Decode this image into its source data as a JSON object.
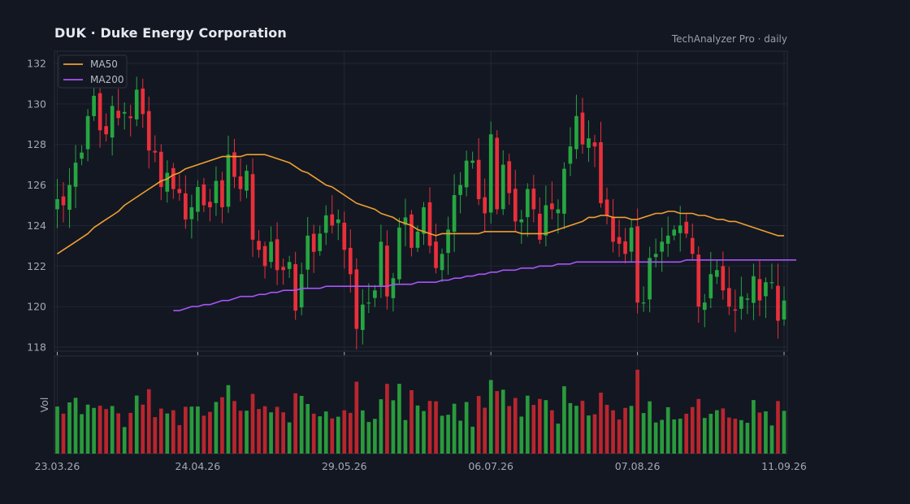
{
  "header": {
    "title": "DUK  ·  Duke Energy Corporation",
    "subtitle": "TechAnalyzer Pro · daily"
  },
  "legend": [
    {
      "label": "MA50",
      "color": "#f0a030"
    },
    {
      "label": "MA200",
      "color": "#a855f7"
    }
  ],
  "colors": {
    "up": "#26a641",
    "down": "#e8303a",
    "volume_up": "#2a9a3c",
    "volume_down": "#b8262e"
  },
  "chart_data": {
    "type": "candlestick",
    "ylim": [
      117.8,
      132.6
    ],
    "yticks": [
      118,
      120,
      122,
      124,
      126,
      128,
      130,
      132
    ],
    "volume_label": "Vol",
    "date_labels": [
      {
        "index": 0,
        "label": "23.03.26"
      },
      {
        "index": 23,
        "label": "24.04.26"
      },
      {
        "index": 47,
        "label": "29.05.26"
      },
      {
        "index": 71,
        "label": "06.07.26"
      },
      {
        "index": 95,
        "label": "07.08.26"
      },
      {
        "index": 119,
        "label": "11.09.26"
      }
    ],
    "close": [
      125.3,
      125.0,
      126.0,
      127.1,
      127.6,
      129.4,
      130.4,
      128.7,
      128.5,
      129.9,
      129.3,
      129.6,
      129.3,
      130.7,
      129.5,
      127.7,
      127.6,
      125.9,
      126.6,
      125.8,
      125.6,
      124.3,
      124.9,
      125.9,
      125.0,
      124.9,
      126.2,
      124.9,
      127.5,
      126.4,
      125.8,
      126.7,
      123.3,
      122.8,
      122.0,
      123.2,
      121.8,
      121.8,
      122.2,
      119.8,
      121.6,
      123.5,
      122.7,
      123.6,
      124.5,
      124.0,
      124.3,
      122.8,
      121.6,
      118.9,
      120.1,
      120.2,
      120.8,
      123.2,
      120.5,
      121.4,
      123.9,
      124.4,
      122.9,
      123.7,
      124.9,
      123.0,
      121.9,
      122.6,
      123.8,
      125.5,
      126.0,
      127.2,
      127.2,
      125.3,
      124.6,
      128.5,
      124.8,
      127.0,
      125.6,
      124.2,
      124.3,
      125.8,
      124.8,
      123.3,
      125.0,
      124.8,
      124.8,
      126.8,
      127.9,
      129.4,
      128.0,
      128.3,
      127.9,
      125.1,
      124.5,
      123.2,
      123.1,
      122.6,
      123.9,
      120.2,
      120.2,
      122.4,
      122.6,
      123.2,
      123.5,
      123.8,
      124.0,
      123.6,
      122.6,
      120.0,
      120.2,
      121.6,
      121.8,
      120.8,
      120.0,
      119.8,
      120.5,
      120.4,
      121.5,
      120.3,
      121.2,
      121.2,
      119.3,
      120.3
    ],
    "ma50_start": 0,
    "ma50": [
      122.6,
      122.8,
      123.0,
      123.2,
      123.4,
      123.6,
      123.9,
      124.1,
      124.3,
      124.5,
      124.7,
      125.0,
      125.2,
      125.4,
      125.6,
      125.8,
      126.0,
      126.2,
      126.3,
      126.5,
      126.6,
      126.8,
      126.9,
      127.0,
      127.1,
      127.2,
      127.3,
      127.4,
      127.4,
      127.4,
      127.4,
      127.5,
      127.5,
      127.5,
      127.5,
      127.4,
      127.3,
      127.2,
      127.1,
      126.9,
      126.7,
      126.6,
      126.4,
      126.2,
      126.0,
      125.9,
      125.7,
      125.5,
      125.3,
      125.1,
      125.0,
      124.9,
      124.8,
      124.6,
      124.5,
      124.4,
      124.2,
      124.1,
      124.0,
      123.8,
      123.7,
      123.6,
      123.5,
      123.6,
      123.6,
      123.6,
      123.6,
      123.6,
      123.6,
      123.6,
      123.7,
      123.7,
      123.7,
      123.7,
      123.7,
      123.7,
      123.6,
      123.6,
      123.6,
      123.6,
      123.6,
      123.7,
      123.8,
      123.9,
      124.0,
      124.1,
      124.2,
      124.4,
      124.4,
      124.5,
      124.5,
      124.4,
      124.4,
      124.4,
      124.3,
      124.3,
      124.4,
      124.5,
      124.6,
      124.6,
      124.7,
      124.7,
      124.6,
      124.6,
      124.6,
      124.5,
      124.5,
      124.4,
      124.3,
      124.3,
      124.2,
      124.2,
      124.1,
      124.0,
      123.9,
      123.8,
      123.7,
      123.6,
      123.5,
      123.5
    ],
    "ma200_start": 19,
    "ma200": [
      119.8,
      119.8,
      119.9,
      120.0,
      120.0,
      120.1,
      120.1,
      120.2,
      120.3,
      120.3,
      120.4,
      120.5,
      120.5,
      120.5,
      120.6,
      120.6,
      120.7,
      120.7,
      120.8,
      120.8,
      120.8,
      120.9,
      120.9,
      120.9,
      120.9,
      121.0,
      121.0,
      121.0,
      121.0,
      121.0,
      121.0,
      121.0,
      121.0,
      121.0,
      121.0,
      121.0,
      121.1,
      121.1,
      121.1,
      121.1,
      121.2,
      121.2,
      121.2,
      121.2,
      121.3,
      121.3,
      121.4,
      121.4,
      121.5,
      121.5,
      121.6,
      121.6,
      121.7,
      121.7,
      121.8,
      121.8,
      121.8,
      121.9,
      121.9,
      121.9,
      122.0,
      122.0,
      122.0,
      122.1,
      122.1,
      122.1,
      122.2,
      122.2,
      122.2,
      122.2,
      122.2,
      122.2,
      122.2,
      122.2,
      122.2,
      122.2,
      122.2,
      122.2,
      122.2,
      122.2,
      122.2,
      122.2,
      122.2,
      122.2,
      122.3,
      122.3,
      122.3,
      122.3,
      122.3,
      122.3,
      122.3,
      122.3,
      122.3,
      122.3,
      122.3,
      122.3,
      122.3,
      122.3,
      122.3,
      122.3,
      122.3,
      122.3,
      122.3
    ]
  }
}
